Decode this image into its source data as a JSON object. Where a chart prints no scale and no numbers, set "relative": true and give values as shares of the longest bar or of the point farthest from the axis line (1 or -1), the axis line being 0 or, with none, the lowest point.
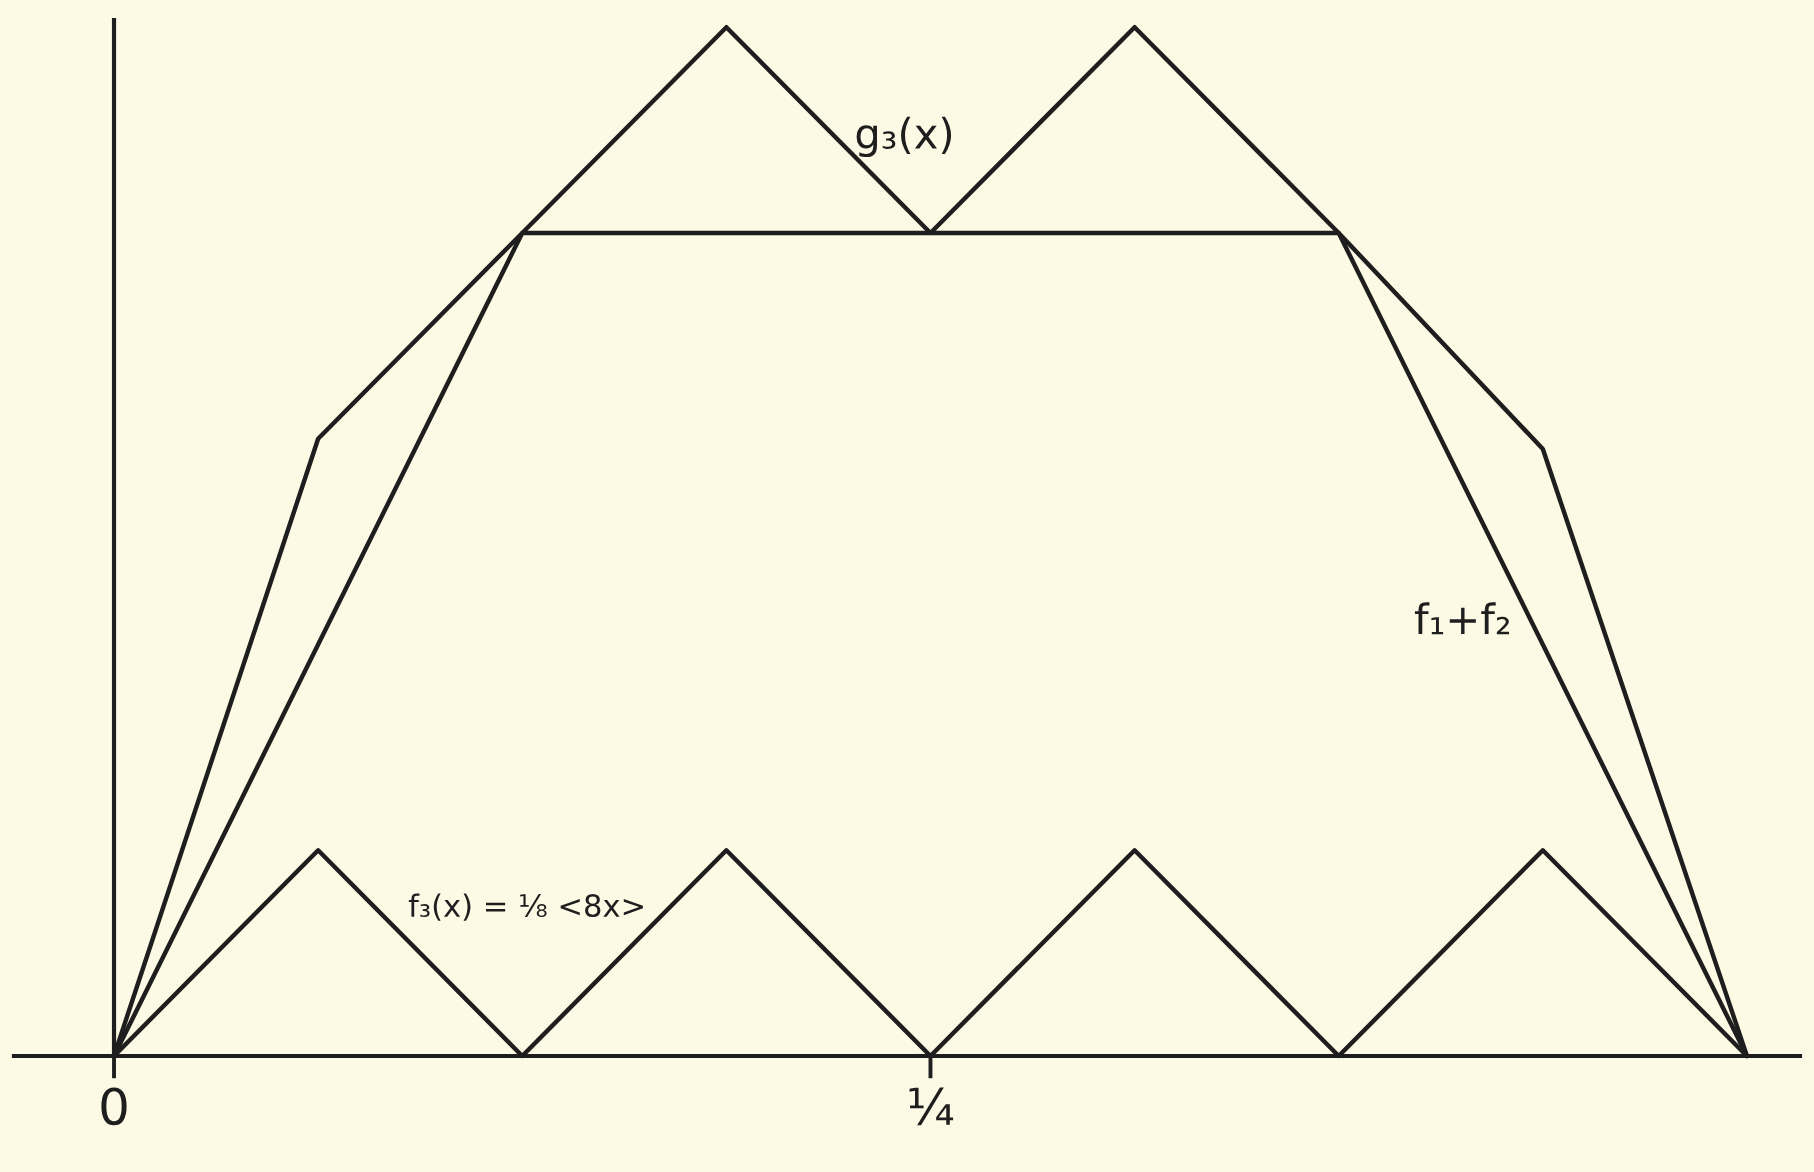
{
  "chart_data": {
    "type": "line",
    "relative": true,
    "categories": [
      "0",
      null,
      null,
      null,
      "¼",
      null,
      null,
      null,
      null
    ],
    "series": [
      {
        "name": "g₃(x)",
        "color": "#1e1e1e",
        "values": [
          0,
          0.6,
          0.8,
          1,
          0.8,
          1,
          0.8,
          0.59,
          0
        ]
      },
      {
        "name": "f₁+f₂",
        "color": "#1e1e1e",
        "values": [
          0,
          0.4,
          0.8,
          0.8,
          0.8,
          0.8,
          0.8,
          0.4,
          0
        ]
      },
      {
        "name": "f₃(x) = ⅛ <8x>",
        "color": "#1e1e1e",
        "values": [
          0,
          0.2,
          0,
          0.2,
          0,
          0.2,
          0,
          0.2,
          0
        ]
      }
    ],
    "line_style": "solid"
  }
}
